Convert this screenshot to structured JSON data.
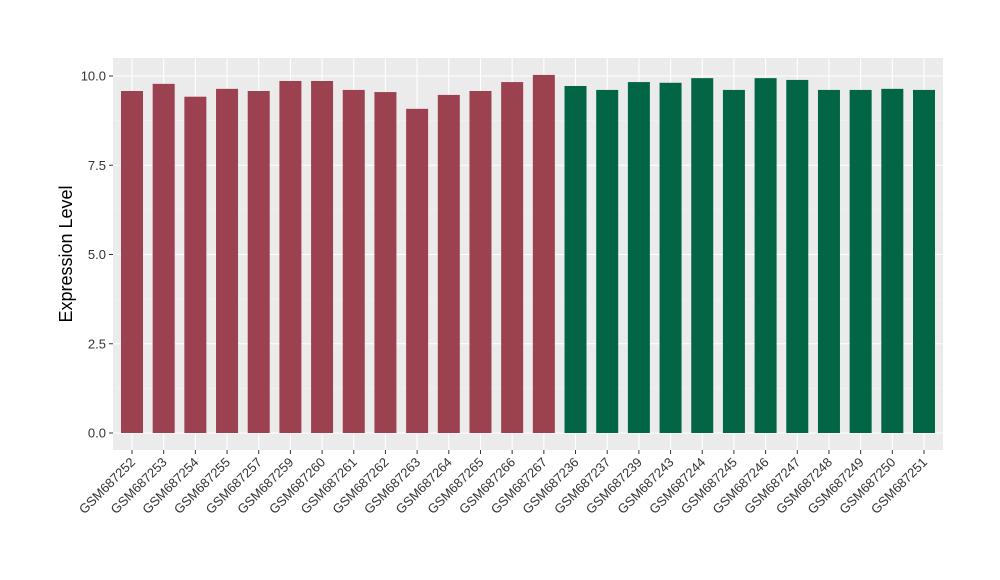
{
  "chart_data": {
    "type": "bar",
    "title": "",
    "xlabel": "",
    "ylabel": "Expression Level",
    "ylim": [
      0,
      10.5
    ],
    "yticks": [
      "0.0",
      "2.5",
      "5.0",
      "7.5",
      "10.0"
    ],
    "grid": true,
    "categories": [
      "GSM687252",
      "GSM687253",
      "GSM687254",
      "GSM687255",
      "GSM687257",
      "GSM687259",
      "GSM687260",
      "GSM687261",
      "GSM687262",
      "GSM687263",
      "GSM687264",
      "GSM687265",
      "GSM687266",
      "GSM687267",
      "GSM687236",
      "GSM687237",
      "GSM687239",
      "GSM687243",
      "GSM687244",
      "GSM687245",
      "GSM687246",
      "GSM687247",
      "GSM687248",
      "GSM687249",
      "GSM687250",
      "GSM687251"
    ],
    "values": [
      9.58,
      9.78,
      9.42,
      9.64,
      9.58,
      9.86,
      9.86,
      9.61,
      9.55,
      9.08,
      9.47,
      9.58,
      9.83,
      10.03,
      9.72,
      9.61,
      9.83,
      9.81,
      9.94,
      9.61,
      9.94,
      9.89,
      9.61,
      9.61,
      9.64,
      9.61
    ],
    "group_colors": [
      "#9b4150",
      "#9b4150",
      "#9b4150",
      "#9b4150",
      "#9b4150",
      "#9b4150",
      "#9b4150",
      "#9b4150",
      "#9b4150",
      "#9b4150",
      "#9b4150",
      "#9b4150",
      "#9b4150",
      "#9b4150",
      "#026646",
      "#026646",
      "#026646",
      "#026646",
      "#026646",
      "#026646",
      "#026646",
      "#026646",
      "#026646",
      "#026646",
      "#026646",
      "#026646"
    ],
    "panel_background": "#ebebeb"
  }
}
